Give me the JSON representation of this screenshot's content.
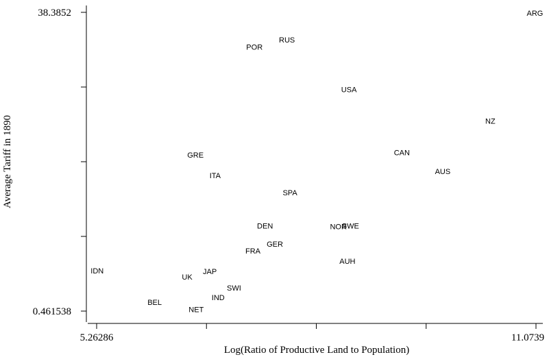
{
  "chart_data": {
    "type": "scatter",
    "xlabel": "Log(Ratio of Productive Land to Population)",
    "ylabel": "Average Tariff in 1890",
    "xlim": [
      5.26286,
      11.0739
    ],
    "ylim": [
      0.461538,
      38.3852
    ],
    "x_tick_labels": [
      "5.26286",
      "11.0739"
    ],
    "y_tick_labels": [
      "38.3852",
      "0.461538"
    ],
    "marker": "label",
    "points": [
      {
        "label": "ARG",
        "x": 11.06,
        "y": 38.3
      },
      {
        "label": "RUS",
        "x": 7.78,
        "y": 34.9
      },
      {
        "label": "POR",
        "x": 7.35,
        "y": 34.0
      },
      {
        "label": "USA",
        "x": 8.6,
        "y": 28.6
      },
      {
        "label": "NZ",
        "x": 10.47,
        "y": 24.6
      },
      {
        "label": "CAN",
        "x": 9.3,
        "y": 20.6
      },
      {
        "label": "GRE",
        "x": 6.57,
        "y": 20.3
      },
      {
        "label": "AUS",
        "x": 9.84,
        "y": 18.2
      },
      {
        "label": "ITA",
        "x": 6.83,
        "y": 17.7
      },
      {
        "label": "SPA",
        "x": 7.82,
        "y": 15.5
      },
      {
        "label": "DEN",
        "x": 7.49,
        "y": 11.3
      },
      {
        "label": "NOR",
        "x": 8.46,
        "y": 11.2
      },
      {
        "label": "SWE",
        "x": 8.62,
        "y": 11.3
      },
      {
        "label": "GER",
        "x": 7.62,
        "y": 9.0
      },
      {
        "label": "FRA",
        "x": 7.33,
        "y": 8.1
      },
      {
        "label": "AUH",
        "x": 8.58,
        "y": 6.8
      },
      {
        "label": "IDN",
        "x": 5.27,
        "y": 5.6
      },
      {
        "label": "JAP",
        "x": 6.76,
        "y": 5.5
      },
      {
        "label": "UK",
        "x": 6.46,
        "y": 4.8
      },
      {
        "label": "SWI",
        "x": 7.08,
        "y": 3.4
      },
      {
        "label": "IND",
        "x": 6.87,
        "y": 2.2
      },
      {
        "label": "BEL",
        "x": 6.03,
        "y": 1.6
      },
      {
        "label": "NET",
        "x": 6.58,
        "y": 0.7
      }
    ]
  }
}
